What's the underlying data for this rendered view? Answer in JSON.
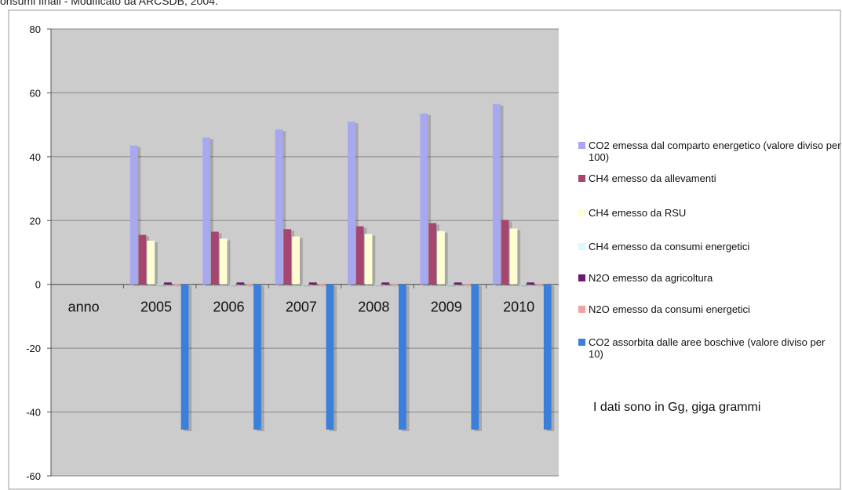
{
  "header": {
    "caption": "onsumi finali - Modificato da ARCSDB, 2004."
  },
  "note": "I dati sono in Gg, giga grammi",
  "chart_data": {
    "type": "bar",
    "categories": [
      "anno",
      "2005",
      "2006",
      "2007",
      "2008",
      "2009",
      "2010"
    ],
    "ylim": [
      -60,
      80
    ],
    "yticks": [
      -60,
      -40,
      -20,
      0,
      20,
      40,
      60,
      80
    ],
    "grid": true,
    "legend_position": "right",
    "series": [
      {
        "name": "CO2 emessa dal comparto energetico (valore diviso per 100)",
        "color": "#a8a8f0",
        "values": [
          null,
          43.5,
          46,
          48.5,
          51,
          53.5,
          56.5
        ]
      },
      {
        "name": "CH4 emesso da allevamenti",
        "color": "#a6456f",
        "values": [
          null,
          15.5,
          16.5,
          17.3,
          18.2,
          19.2,
          20.2
        ]
      },
      {
        "name": "CH4 emesso da RSU",
        "color": "#fefed2",
        "values": [
          null,
          13.7,
          14.3,
          15,
          15.8,
          16.7,
          17.5
        ]
      },
      {
        "name": "CH4 emesso da consumi energetici",
        "color": "#d8fafd",
        "values": [
          null,
          0.1,
          0.1,
          0.1,
          0.1,
          0.1,
          0.1
        ]
      },
      {
        "name": "N2O emesso da agricoltura",
        "color": "#6e1a6e",
        "values": [
          null,
          0.6,
          0.6,
          0.6,
          0.6,
          0.6,
          0.6
        ]
      },
      {
        "name": "N2O emesso da consumi energetici",
        "color": "#f5a0a0",
        "values": [
          null,
          0.1,
          0.1,
          0.1,
          0.1,
          0.1,
          0.1
        ]
      },
      {
        "name": "CO2 assorbita dalle aree boschive (valore diviso per 10)",
        "color": "#3a7fdc",
        "values": [
          null,
          -45.5,
          -45.5,
          -45.5,
          -45.5,
          -45.5,
          -45.5
        ]
      }
    ]
  }
}
